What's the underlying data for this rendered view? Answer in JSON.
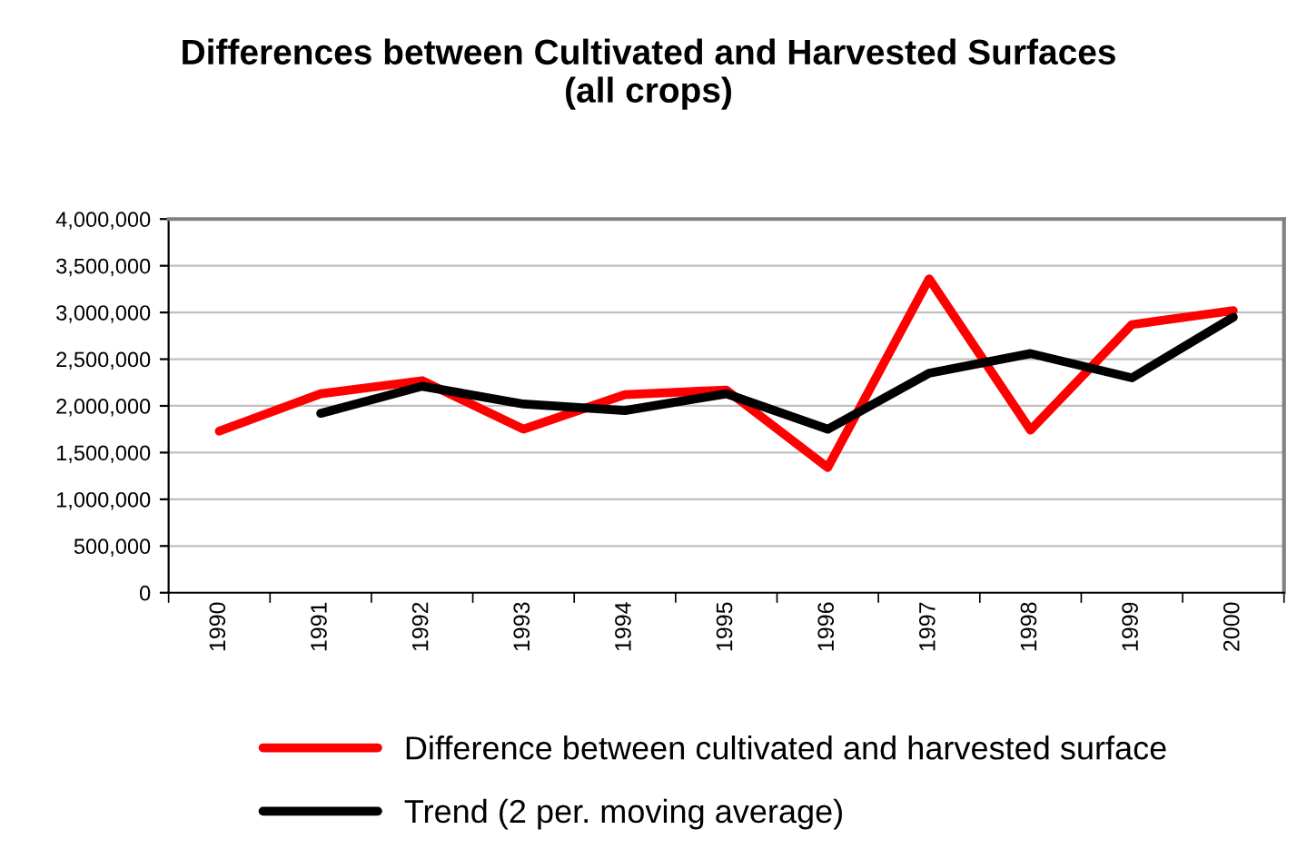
{
  "chart_data": {
    "type": "line",
    "title": "Differences between Cultivated and Harvested Surfaces\n(all crops)",
    "categories": [
      "1990",
      "1991",
      "1992",
      "1993",
      "1994",
      "1995",
      "1996",
      "1997",
      "1998",
      "1999",
      "2000"
    ],
    "series": [
      {
        "name": "Difference between cultivated and harvested surface",
        "color": "#ff0000",
        "values": [
          1730000,
          2130000,
          2270000,
          1750000,
          2120000,
          2170000,
          1340000,
          3360000,
          1740000,
          2870000,
          3020000
        ]
      },
      {
        "name": "Trend (2 per. moving average)",
        "color": "#000000",
        "values": [
          null,
          1920000,
          2210000,
          2020000,
          1950000,
          2130000,
          1750000,
          2350000,
          2560000,
          2300000,
          2950000
        ]
      }
    ],
    "ylim": [
      0,
      4000000
    ],
    "yticks": [
      {
        "value": 0,
        "label": "0"
      },
      {
        "value": 500000,
        "label": "500,000"
      },
      {
        "value": 1000000,
        "label": "1,000,000"
      },
      {
        "value": 1500000,
        "label": "1,500,000"
      },
      {
        "value": 2000000,
        "label": "2,000,000"
      },
      {
        "value": 2500000,
        "label": "2,500,000"
      },
      {
        "value": 3000000,
        "label": "3,000,000"
      },
      {
        "value": 3500000,
        "label": "3,500,000"
      },
      {
        "value": 4000000,
        "label": "4,000,000"
      }
    ],
    "grid": "y",
    "legend": "bottom",
    "marker": "none",
    "line_style": "solid"
  }
}
